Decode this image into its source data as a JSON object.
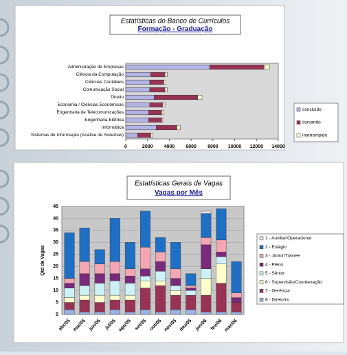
{
  "chart_data": [
    {
      "type": "bar",
      "orientation": "horizontal",
      "stacked": true,
      "title": "Estatísticas do Banco de Currículos",
      "subtitle": "Formação - Graduação",
      "categories": [
        "Administração de Empresas",
        "Ciência da Computação",
        "Ciências Contábeis",
        "Comunicação Social",
        "Direito",
        "Economia / Ciências Econômicas",
        "Engenharia de Telecomunicações",
        "Engenharia Elétrica",
        "Informática",
        "Sistemas de Informação (Análise de Sistemas)"
      ],
      "series": [
        {
          "name": "concluído",
          "color": "#b3b3e6",
          "values": [
            7700,
            2300,
            2200,
            2200,
            2600,
            2200,
            2100,
            2100,
            2800,
            1100
          ]
        },
        {
          "name": "cursando",
          "color": "#993355",
          "values": [
            5000,
            1300,
            1300,
            1400,
            4000,
            1200,
            1200,
            1200,
            1900,
            1200
          ]
        },
        {
          "name": "interrompido",
          "color": "#ffffcc",
          "values": [
            500,
            200,
            200,
            200,
            400,
            200,
            200,
            100,
            300,
            200
          ]
        }
      ],
      "xlim": [
        0,
        14000
      ],
      "xticks": [
        0,
        2000,
        4000,
        6000,
        8000,
        10000,
        12000,
        14000
      ],
      "grid": false,
      "legend": "right"
    },
    {
      "type": "bar",
      "orientation": "vertical",
      "stacked": true,
      "title": "Estatísticas Gerais de Vagas",
      "subtitle": "Vagas por Mês",
      "y_label": "Qtd de Vagas",
      "categories": [
        "abr/05",
        "mai/05",
        "jun/05",
        "jul/05",
        "ago/05",
        "set/05",
        "out/05",
        "nov/05",
        "dez/05",
        "jan/06",
        "fev/06",
        "mar/06"
      ],
      "series": [
        {
          "name": "1 - Auxiliar/Operacional",
          "color": "#e6e6ee",
          "values": [
            0,
            0,
            0,
            0,
            0,
            0,
            0,
            0,
            0,
            1,
            0,
            0
          ]
        },
        {
          "name": "2 - Estágio",
          "color": "#1f6fc4",
          "values": [
            19,
            14,
            6,
            18,
            11,
            15,
            6,
            11,
            5,
            10,
            13,
            13
          ]
        },
        {
          "name": "3 - Júnior/Trainee",
          "color": "#f4a6b4",
          "values": [
            2,
            5,
            4,
            5,
            3,
            9,
            4,
            4,
            1,
            3,
            5,
            2
          ]
        },
        {
          "name": "4 - Pleno",
          "color": "#7a2a7a",
          "values": [
            2,
            5,
            4,
            3,
            3,
            3,
            4,
            3,
            1,
            10,
            2,
            2
          ]
        },
        {
          "name": "5 - Sênior",
          "color": "#ccf2f7",
          "values": [
            4,
            4,
            5,
            6,
            5,
            2,
            4,
            2,
            2,
            4,
            3,
            0
          ]
        },
        {
          "name": "6 - Supervisão/Coordenação",
          "color": "#ffffcc",
          "values": [
            2,
            2,
            3,
            2,
            2,
            3,
            2,
            2,
            0,
            7,
            8,
            0
          ]
        },
        {
          "name": "7 - Gerência",
          "color": "#993355",
          "values": [
            3,
            5,
            4,
            4,
            5,
            9,
            11,
            6,
            6,
            7,
            12,
            4
          ]
        },
        {
          "name": "8 - Diretoria",
          "color": "#99b3e6",
          "values": [
            2,
            1,
            1,
            2,
            1,
            2,
            1,
            2,
            2,
            1,
            1,
            1
          ]
        }
      ],
      "ylim": [
        0,
        45
      ],
      "yticks": [
        0,
        5,
        10,
        15,
        20,
        25,
        30,
        35,
        40,
        45
      ],
      "grid": true,
      "legend": "right"
    }
  ]
}
